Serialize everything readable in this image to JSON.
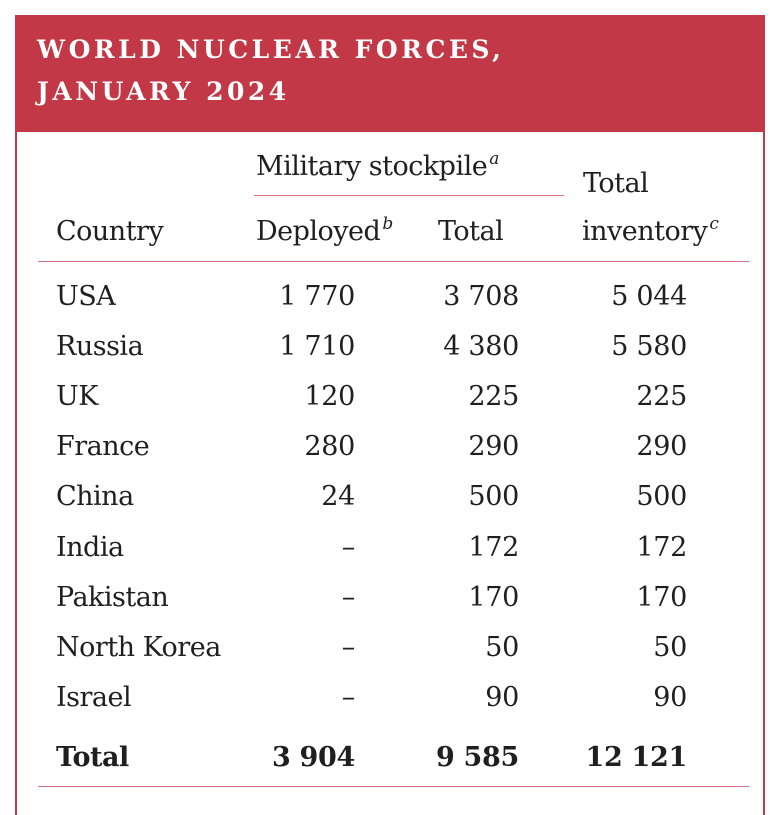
{
  "title": {
    "line1": "WORLD NUCLEAR FORCES,",
    "line2": "JANUARY 2024"
  },
  "headers": {
    "group": "Military stockpile",
    "group_note": "a",
    "country": "Country",
    "deployed": "Deployed",
    "deployed_note": "b",
    "total": "Total",
    "inventory_line1": "Total",
    "inventory_line2": "inventory",
    "inventory_note": "c"
  },
  "rows": [
    {
      "country": "USA",
      "deployed": "1 770",
      "total": "3 708",
      "inventory": "5 044"
    },
    {
      "country": "Russia",
      "deployed": "1 710",
      "total": "4 380",
      "inventory": "5 580"
    },
    {
      "country": "UK",
      "deployed": "120",
      "total": "225",
      "inventory": "225"
    },
    {
      "country": "France",
      "deployed": "280",
      "total": "290",
      "inventory": "290"
    },
    {
      "country": "China",
      "deployed": "24",
      "total": "500",
      "inventory": "500"
    },
    {
      "country": "India",
      "deployed": "–",
      "total": "172",
      "inventory": "172"
    },
    {
      "country": "Pakistan",
      "deployed": "–",
      "total": "170",
      "inventory": "170"
    },
    {
      "country": "North Korea",
      "deployed": "–",
      "total": "50",
      "inventory": "50"
    },
    {
      "country": "Israel",
      "deployed": "–",
      "total": "90",
      "inventory": "90"
    }
  ],
  "totals": {
    "label": "Total",
    "deployed": "3 904",
    "total": "9 585",
    "inventory": "12 121"
  },
  "colors": {
    "accent": "#c23847",
    "rule": "#d5707d",
    "text": "#1f1f1f"
  }
}
